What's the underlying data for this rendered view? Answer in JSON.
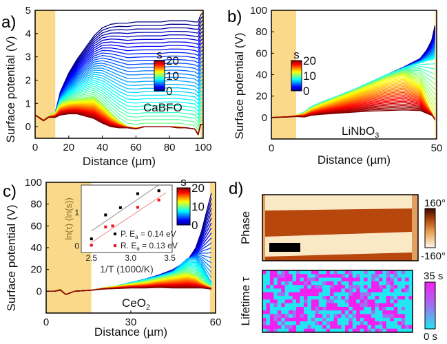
{
  "figure": {
    "panel_labels": [
      "a)",
      "b)",
      "c)",
      "d)"
    ],
    "ylabel": "Surface potential (V)",
    "xlabel": "Distance (µm)"
  },
  "chart_data": [
    {
      "id": "a",
      "type": "line",
      "material": "CaBFO",
      "xlabel": "Distance (µm)",
      "ylabel": "Surface potential (V)",
      "xlim": [
        0,
        100
      ],
      "ylim": [
        -0.5,
        5
      ],
      "xticks": [
        "0",
        "20",
        "40",
        "60",
        "80",
        "100"
      ],
      "xtick_values": [
        0,
        20,
        40,
        60,
        80,
        100
      ],
      "yticks": [
        "0",
        "1",
        "2",
        "3",
        "4",
        "5"
      ],
      "ytick_values": [
        0,
        1,
        2,
        3,
        4,
        5
      ],
      "electrode_regions": [
        [
          0,
          12
        ],
        [
          98.5,
          100
        ]
      ],
      "colorbar": {
        "label": "s",
        "ticks": [
          "20",
          "10",
          "0"
        ],
        "range": [
          0,
          20
        ],
        "colormap": "jet"
      },
      "time_series": {
        "x": [
          0,
          3,
          5,
          8,
          12,
          15,
          20,
          25,
          30,
          35,
          40,
          45,
          50,
          55,
          60,
          65,
          70,
          75,
          80,
          85,
          90,
          95,
          97,
          98.5,
          100
        ],
        "keys": [
          {
            "t": 0,
            "y": [
              0.5,
              0.4,
              0.3,
              0.45,
              0.6,
              1.5,
              2.3,
              2.9,
              3.4,
              3.9,
              4.25,
              4.4,
              4.45,
              4.45,
              4.5,
              4.5,
              4.5,
              4.5,
              4.55,
              4.55,
              4.55,
              4.5,
              4.5,
              4.8,
              4.9
            ]
          },
          {
            "t": 10,
            "y": [
              0.5,
              0.4,
              0.3,
              0.45,
              0.6,
              1.0,
              1.15,
              1.2,
              1.25,
              1.3,
              1.0,
              0.6,
              0.25,
              0.0,
              -0.05,
              0.0,
              0.0,
              0.0,
              0.0,
              0.0,
              -0.05,
              -0.1,
              -0.3,
              0.1,
              0.1
            ]
          },
          {
            "t": 20,
            "y": [
              0.5,
              0.35,
              0.25,
              0.4,
              0.4,
              0.5,
              0.55,
              0.55,
              0.45,
              0.35,
              0.15,
              0.0,
              -0.05,
              -0.05,
              -0.1,
              0.0,
              0.0,
              0.0,
              0.0,
              -0.05,
              -0.05,
              -0.1,
              -0.35,
              0.1,
              0.1
            ]
          }
        ]
      }
    },
    {
      "id": "b",
      "type": "line",
      "material": "LiNbO",
      "material_sub": "3",
      "xlabel": "Distance (µm)",
      "ylabel": "Surface potential (V)",
      "xlim": [
        0,
        50
      ],
      "ylim": [
        -20,
        100
      ],
      "xticks": [
        "0",
        "50"
      ],
      "xtick_values": [
        0,
        50
      ],
      "yticks": [
        "0",
        "20",
        "40",
        "60",
        "80",
        "100"
      ],
      "ytick_values": [
        0,
        20,
        40,
        60,
        80,
        100
      ],
      "electrode_regions": [
        [
          0,
          7.5
        ],
        [
          49.5,
          50
        ]
      ],
      "colorbar": {
        "label": "s",
        "ticks": [
          "20",
          "10",
          "0"
        ],
        "range": [
          0,
          20
        ],
        "colormap": "jet"
      },
      "time_series": {
        "x": [
          0,
          5,
          7.5,
          10,
          12,
          15,
          20,
          25,
          30,
          35,
          40,
          45,
          47,
          48.5,
          49.5
        ],
        "keys": [
          {
            "t": 0,
            "y": [
              0,
              1,
              2,
              5,
              10,
              14,
              20,
              26,
              33,
              40,
              47,
              55,
              63,
              72,
              86
            ]
          },
          {
            "t": 8,
            "y": [
              0,
              1,
              2,
              5,
              10,
              14,
              20,
              26,
              33,
              40,
              46,
              51,
              53,
              54,
              55
            ]
          },
          {
            "t": 12,
            "y": [
              0,
              1,
              2,
              4,
              8,
              12,
              18,
              24,
              30,
              36,
              40,
              30,
              15,
              5,
              -3
            ]
          },
          {
            "t": 20,
            "y": [
              0,
              0.5,
              1,
              0.5,
              2,
              3,
              4,
              5,
              6,
              6.5,
              7,
              6.5,
              4,
              2,
              -1
            ]
          }
        ]
      }
    },
    {
      "id": "c",
      "type": "line",
      "material": "CeO",
      "material_sub": "2",
      "xlabel": "Distance (µm)",
      "ylabel": "Surface potential (V)",
      "xlim": [
        0,
        60
      ],
      "ylim": [
        -20,
        100
      ],
      "xticks": [
        "0",
        "30",
        "60"
      ],
      "xtick_values": [
        0,
        30,
        60
      ],
      "yticks": [
        "0",
        "20",
        "40",
        "60",
        "80",
        "100"
      ],
      "ytick_values": [
        0,
        20,
        40,
        60,
        80,
        100
      ],
      "electrode_regions": [
        [
          0,
          16
        ],
        [
          58,
          60
        ]
      ],
      "colorbar": {
        "label": "s",
        "ticks": [
          "20",
          "10",
          "0"
        ],
        "range": [
          0,
          20
        ],
        "colormap": "jet"
      },
      "time_series": {
        "x": [
          0,
          3,
          5,
          7,
          10,
          16,
          20,
          25,
          30,
          35,
          40,
          45,
          50,
          53,
          55,
          57,
          58.5
        ],
        "keys": [
          {
            "t": 0,
            "y": [
              0,
              0,
              2,
              -3,
              0,
              1,
              3,
              5,
              8,
              11,
              15,
              20,
              28,
              40,
              55,
              75,
              90
            ]
          },
          {
            "t": 6,
            "y": [
              0,
              0,
              2,
              -3,
              0,
              1,
              3,
              5,
              8,
              11,
              14,
              18,
              30,
              30,
              25,
              15,
              8
            ]
          },
          {
            "t": 10,
            "y": [
              0,
              0,
              2,
              -3,
              0,
              1,
              3,
              5,
              7,
              9,
              12,
              15,
              18,
              15,
              10,
              6,
              4
            ]
          },
          {
            "t": 20,
            "y": [
              0,
              0,
              1,
              -3,
              0,
              1,
              2,
              2.5,
              3,
              3,
              3.5,
              3,
              3,
              3,
              3,
              2.5,
              2
            ]
          }
        ]
      },
      "inset": {
        "type": "scatter",
        "xlabel": "1/T (1000/K)",
        "ylabel": "ln(τ) (ln(s))",
        "xlim": [
          2.37,
          3.53
        ],
        "ylim": [
          -0.2,
          1.83
        ],
        "xticks": [
          "2.5",
          "3.0",
          "3.5"
        ],
        "xtick_values": [
          2.5,
          3.0,
          3.5
        ],
        "yticks": [
          "0",
          "1"
        ],
        "ytick_values": [
          0,
          1
        ],
        "series": [
          {
            "name": "P.",
            "legend_prefix": "P. E",
            "legend_sub": "a",
            "legend_suffix": " = 0.14 eV",
            "color": "#000000",
            "fit_color": "#888888",
            "x": [
              2.5,
              2.68,
              2.87,
              3.09,
              3.36
            ],
            "y": [
              0.21,
              0.93,
              1.15,
              1.57,
              1.66
            ],
            "fit": [
              [
                2.5,
                0.45
              ],
              [
                3.35,
                1.82
              ]
            ]
          },
          {
            "name": "R.",
            "legend_prefix": "R. E",
            "legend_sub": "a",
            "legend_suffix": " = 0.13 eV",
            "color": "#ee1111",
            "fit_color": "#f08080",
            "x": [
              2.5,
              2.68,
              2.77,
              3.09,
              3.36
            ],
            "y": [
              0.02,
              0.57,
              0.6,
              1.16,
              1.38
            ],
            "fit": [
              [
                2.5,
                0.1
              ],
              [
                3.45,
                1.6
              ]
            ]
          }
        ]
      }
    },
    {
      "id": "d",
      "type": "heatmap",
      "phase": {
        "label": "Phase",
        "colorbar_max": "160°",
        "colorbar_min": "-160°",
        "colors": [
          "#fff8ea",
          "#e8a050",
          "#b54a10",
          "#3a0800"
        ]
      },
      "lifetime": {
        "label": "Lifetime τ",
        "colorbar_max": "35 s",
        "colorbar_min": "0 s",
        "colors": [
          "#22e6f2",
          "#a070f0",
          "#f020f0"
        ]
      }
    }
  ]
}
